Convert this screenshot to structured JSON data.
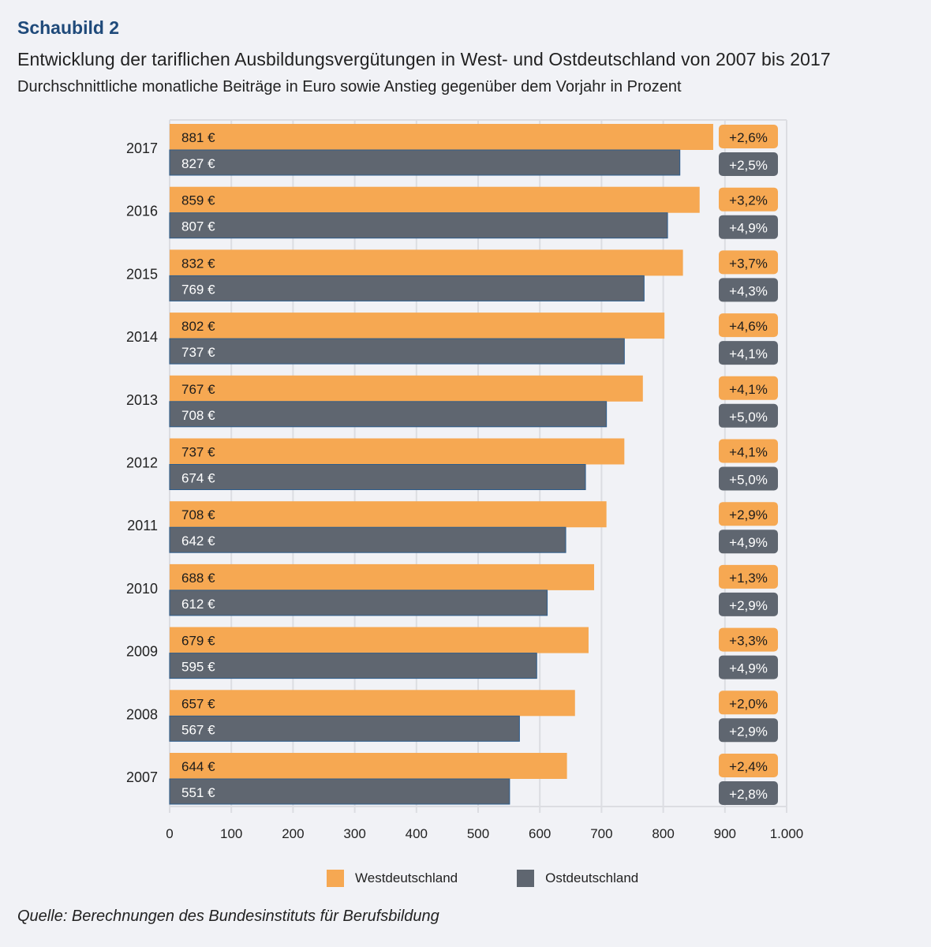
{
  "header": {
    "kicker": "Schaubild 2",
    "title": "Entwicklung der tariflichen Ausbildungsvergütungen in West- und Ostdeutschland von 2007 bis 2017",
    "subtitle": "Durchschnittliche monatliche Beiträge in Euro sowie Anstieg gegenüber dem Vorjahr in Prozent"
  },
  "source": "Quelle: Berechnungen des Bundesinstituts für Berufsbildung",
  "colors": {
    "west": "#f6a852",
    "ost": "#5f6670",
    "background": "#f1f2f6",
    "grid": "#dcdde2",
    "kicker": "#1f4a7a"
  },
  "chart_data": {
    "type": "bar",
    "orientation": "horizontal",
    "title": "Entwicklung der tariflichen Ausbildungsvergütungen in West- und Ostdeutschland von 2007 bis 2017",
    "subtitle": "Durchschnittliche monatliche Beiträge in Euro sowie Anstieg gegenüber dem Vorjahr in Prozent",
    "xlabel": "",
    "ylabel": "",
    "xlim": [
      0,
      1000
    ],
    "xticks": [
      0,
      100,
      200,
      300,
      400,
      500,
      600,
      700,
      800,
      900,
      1000
    ],
    "xtick_labels": [
      "0",
      "100",
      "200",
      "300",
      "400",
      "500",
      "600",
      "700",
      "800",
      "900",
      "1.000"
    ],
    "grid": true,
    "legend": "bottom-center",
    "categories": [
      "2017",
      "2016",
      "2015",
      "2014",
      "2013",
      "2012",
      "2011",
      "2010",
      "2009",
      "2008",
      "2007"
    ],
    "series": [
      {
        "name": "Westdeutschland",
        "values": [
          881,
          859,
          832,
          802,
          767,
          737,
          708,
          688,
          679,
          657,
          644
        ],
        "value_labels": [
          "881 €",
          "859 €",
          "832 €",
          "802 €",
          "767 €",
          "737 €",
          "708 €",
          "688 €",
          "679 €",
          "657 €",
          "644 €"
        ],
        "change_labels": [
          "+2,6%",
          "+3,2%",
          "+3,7%",
          "+4,6%",
          "+4,1%",
          "+4,1%",
          "+2,9%",
          "+1,3%",
          "+3,3%",
          "+2,0%",
          "+2,4%"
        ]
      },
      {
        "name": "Ostdeutschland",
        "values": [
          827,
          807,
          769,
          737,
          708,
          674,
          642,
          612,
          595,
          567,
          551
        ],
        "value_labels": [
          "827 €",
          "807 €",
          "769 €",
          "737 €",
          "708 €",
          "674 €",
          "642 €",
          "612 €",
          "595 €",
          "567 €",
          "551 €"
        ],
        "change_labels": [
          "+2,5%",
          "+4,9%",
          "+4,3%",
          "+4,1%",
          "+5,0%",
          "+5,0%",
          "+4,9%",
          "+2,9%",
          "+4,9%",
          "+2,9%",
          "+2,8%"
        ]
      }
    ]
  }
}
